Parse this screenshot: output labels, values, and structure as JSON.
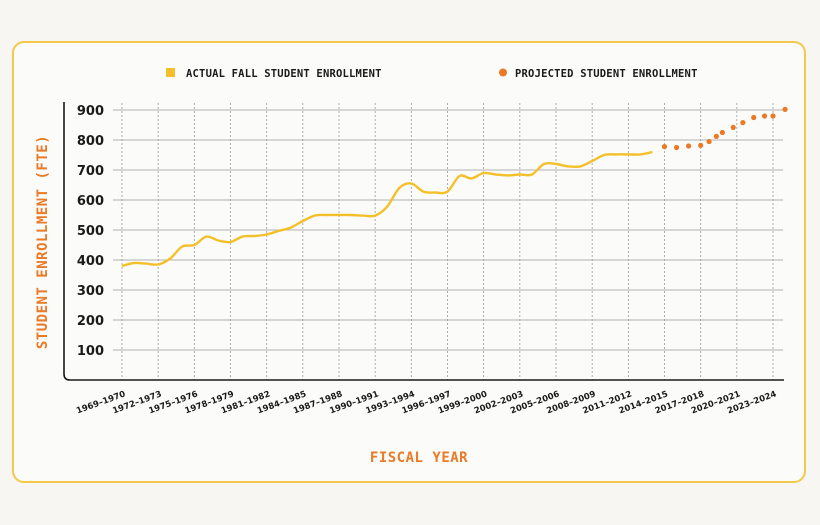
{
  "colors": {
    "frame": "#f4c84a",
    "actual": "#f4c02a",
    "projected": "#ea7a26",
    "axis_title": "#ea7a26",
    "grid": "#9a9a9a"
  },
  "chart_data": {
    "type": "line",
    "xlabel": "FISCAL YEAR",
    "ylabel": "STUDENT ENROLLMENT (FTE)",
    "ylim": [
      0,
      900
    ],
    "yticks": [
      100,
      200,
      300,
      400,
      500,
      600,
      700,
      800,
      900
    ],
    "xticks": [
      "1969–1970",
      "1972–1973",
      "1975–1976",
      "1978–1979",
      "1981–1982",
      "1984–1985",
      "1987–1988",
      "1990–1991",
      "1993–1994",
      "1996–1997",
      "1999–2000",
      "2002–2003",
      "2005–2006",
      "2008–2009",
      "2011–2012",
      "2014–2015",
      "2017–2018",
      "2020–2021",
      "2023–2024"
    ],
    "grid": true,
    "legend_position": "top",
    "series": [
      {
        "name": "ACTUAL FALL STUDENT ENROLLMENT",
        "style": "line",
        "x": [
          1969,
          1970,
          1971,
          1972,
          1973,
          1974,
          1975,
          1976,
          1977,
          1978,
          1979,
          1980,
          1981,
          1982,
          1983,
          1984,
          1985,
          1986,
          1987,
          1988,
          1989,
          1990,
          1991,
          1992,
          1993,
          1994,
          1995,
          1996,
          1997,
          1998,
          1999,
          2000,
          2001,
          2002,
          2003,
          2004,
          2005,
          2006,
          2007,
          2008,
          2009,
          2010,
          2011,
          2012,
          2013
        ],
        "values": [
          380,
          390,
          388,
          385,
          405,
          445,
          450,
          478,
          465,
          460,
          478,
          480,
          485,
          497,
          508,
          530,
          548,
          550,
          550,
          550,
          548,
          548,
          578,
          640,
          655,
          628,
          625,
          628,
          680,
          672,
          690,
          685,
          682,
          685,
          685,
          720,
          720,
          712,
          712,
          730,
          750,
          752,
          752,
          752,
          760
        ]
      },
      {
        "name": "PROJECTED STUDENT ENROLLMENT",
        "style": "dots",
        "x": [
          2014,
          2015,
          2016,
          2017,
          2017.7,
          2018.3,
          2018.8,
          2019.7,
          2020.5,
          2021.4,
          2022.3,
          2023,
          2024
        ],
        "values": [
          778,
          775,
          780,
          782,
          795,
          812,
          825,
          842,
          858,
          875,
          880,
          880,
          902
        ]
      }
    ]
  }
}
